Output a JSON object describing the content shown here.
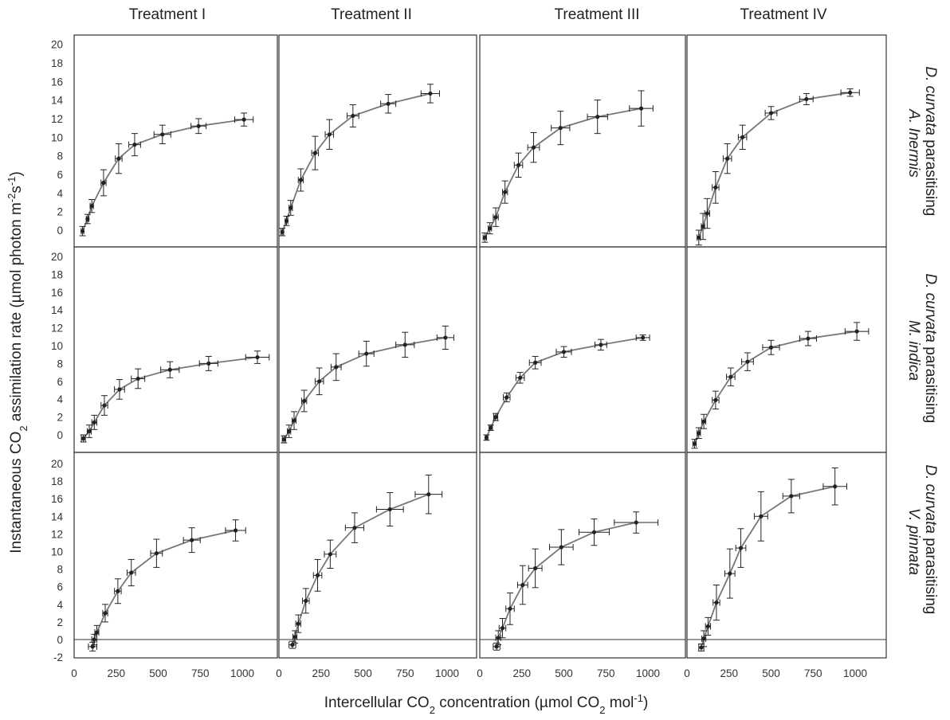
{
  "chart_data": {
    "type": "line",
    "layout": "4x3 small multiples with error bars",
    "x_axis_label": "Intercellular CO2 concentration (µmol CO2 mol-1)",
    "y_axis_label": "Instantaneous CO2 assimilation rate (µmol photon m-2s-1)",
    "column_titles": [
      "Treatment I",
      "Treatment II",
      "Treatment III",
      "Treatment IV"
    ],
    "row_labels": [
      {
        "species": "D. curvata",
        "text": "parasitising",
        "host": "A. Inermis"
      },
      {
        "species": "D. curvata",
        "text": "parasitising",
        "host": "M. indica"
      },
      {
        "species": "D. curvata",
        "text": "parasitising",
        "host": "V. pinnata"
      }
    ],
    "x_ticks": [
      0,
      250,
      500,
      750,
      1000
    ],
    "y_ticks_rows_1_2": [
      0,
      2,
      4,
      6,
      8,
      10,
      12,
      14,
      16,
      18,
      20
    ],
    "y_ticks_row_3": [
      -2,
      0,
      2,
      4,
      6,
      8,
      10,
      12,
      14,
      16,
      18,
      20
    ],
    "xlim": [
      0,
      1100
    ],
    "ylim_rows_1_2": [
      -0.8,
      21.5
    ],
    "ylim_row_3": [
      -2.5,
      21.5
    ],
    "charts": [
      {
        "row": 0,
        "col": 0,
        "points": [
          [
            50,
            -0.1,
            0.5,
            8
          ],
          [
            80,
            1.2,
            0.5,
            8
          ],
          [
            105,
            2.6,
            0.7,
            10
          ],
          [
            175,
            5.1,
            1.4,
            15
          ],
          [
            265,
            7.7,
            1.6,
            20
          ],
          [
            360,
            9.2,
            1.2,
            35
          ],
          [
            525,
            10.3,
            1.0,
            50
          ],
          [
            740,
            11.2,
            0.8,
            45
          ],
          [
            1010,
            11.9,
            0.7,
            55
          ]
        ]
      },
      {
        "row": 0,
        "col": 1,
        "points": [
          [
            20,
            -0.2,
            0.4,
            8
          ],
          [
            45,
            1.0,
            0.5,
            8
          ],
          [
            70,
            2.4,
            0.8,
            10
          ],
          [
            130,
            5.4,
            1.2,
            15
          ],
          [
            215,
            8.3,
            1.8,
            20
          ],
          [
            300,
            10.3,
            1.6,
            25
          ],
          [
            440,
            12.3,
            1.2,
            35
          ],
          [
            650,
            13.6,
            1.0,
            45
          ],
          [
            900,
            14.7,
            1.0,
            55
          ]
        ]
      },
      {
        "row": 0,
        "col": 2,
        "points": [
          [
            30,
            -0.8,
            0.5,
            10
          ],
          [
            60,
            0.2,
            0.6,
            10
          ],
          [
            95,
            1.4,
            1.0,
            15
          ],
          [
            150,
            4.1,
            1.2,
            15
          ],
          [
            230,
            7.0,
            1.3,
            25
          ],
          [
            320,
            8.9,
            1.6,
            35
          ],
          [
            480,
            11.0,
            1.8,
            55
          ],
          [
            700,
            12.2,
            1.8,
            60
          ],
          [
            960,
            13.1,
            1.9,
            70
          ]
        ]
      },
      {
        "row": 0,
        "col": 3,
        "points": [
          [
            70,
            -0.8,
            0.8,
            10
          ],
          [
            95,
            0.4,
            1.4,
            10
          ],
          [
            120,
            1.8,
            1.6,
            15
          ],
          [
            170,
            4.6,
            1.7,
            20
          ],
          [
            240,
            7.7,
            1.6,
            25
          ],
          [
            330,
            10.0,
            1.3,
            25
          ],
          [
            500,
            12.6,
            0.7,
            35
          ],
          [
            710,
            14.1,
            0.6,
            40
          ],
          [
            970,
            14.8,
            0.4,
            55
          ]
        ]
      },
      {
        "row": 1,
        "col": 0,
        "points": [
          [
            55,
            -0.4,
            0.4,
            12
          ],
          [
            90,
            0.4,
            0.7,
            12
          ],
          [
            120,
            1.4,
            0.8,
            15
          ],
          [
            180,
            3.3,
            1.1,
            20
          ],
          [
            270,
            5.1,
            1.1,
            30
          ],
          [
            380,
            6.3,
            1.1,
            40
          ],
          [
            570,
            7.3,
            0.9,
            55
          ],
          [
            800,
            8.0,
            0.8,
            55
          ],
          [
            1090,
            8.7,
            0.7,
            70
          ]
        ]
      },
      {
        "row": 1,
        "col": 1,
        "points": [
          [
            30,
            -0.5,
            0.4,
            10
          ],
          [
            60,
            0.4,
            0.7,
            10
          ],
          [
            90,
            1.6,
            1.0,
            12
          ],
          [
            150,
            3.8,
            1.2,
            15
          ],
          [
            240,
            6.0,
            1.5,
            25
          ],
          [
            340,
            7.6,
            1.5,
            30
          ],
          [
            520,
            9.1,
            1.4,
            45
          ],
          [
            750,
            10.1,
            1.4,
            55
          ],
          [
            990,
            10.9,
            1.3,
            50
          ]
        ]
      },
      {
        "row": 1,
        "col": 2,
        "points": [
          [
            40,
            -0.3,
            0.3,
            8
          ],
          [
            65,
            0.8,
            0.3,
            10
          ],
          [
            95,
            2.0,
            0.4,
            12
          ],
          [
            160,
            4.2,
            0.5,
            20
          ],
          [
            240,
            6.4,
            0.6,
            25
          ],
          [
            330,
            8.1,
            0.7,
            35
          ],
          [
            500,
            9.3,
            0.6,
            45
          ],
          [
            720,
            10.1,
            0.6,
            35
          ],
          [
            970,
            10.9,
            0.3,
            40
          ]
        ]
      },
      {
        "row": 1,
        "col": 3,
        "points": [
          [
            45,
            -1.0,
            0.5,
            10
          ],
          [
            70,
            0.2,
            0.6,
            10
          ],
          [
            100,
            1.5,
            0.8,
            12
          ],
          [
            170,
            3.9,
            1.0,
            20
          ],
          [
            260,
            6.5,
            1.0,
            25
          ],
          [
            360,
            8.2,
            1.0,
            35
          ],
          [
            500,
            9.8,
            0.8,
            50
          ],
          [
            720,
            10.8,
            0.8,
            50
          ],
          [
            1010,
            11.6,
            1.0,
            70
          ]
        ]
      },
      {
        "row": 2,
        "col": 0,
        "points": [
          [
            110,
            -0.8,
            0.5,
            25
          ],
          [
            120,
            0.0,
            0.6,
            15
          ],
          [
            135,
            0.8,
            0.8,
            12
          ],
          [
            185,
            3.0,
            1.0,
            15
          ],
          [
            260,
            5.5,
            1.4,
            20
          ],
          [
            340,
            7.6,
            1.5,
            25
          ],
          [
            490,
            9.8,
            1.6,
            35
          ],
          [
            700,
            11.3,
            1.4,
            50
          ],
          [
            960,
            12.4,
            1.2,
            60
          ]
        ]
      },
      {
        "row": 2,
        "col": 1,
        "points": [
          [
            80,
            -0.6,
            0.4,
            20
          ],
          [
            95,
            0.3,
            0.7,
            12
          ],
          [
            115,
            1.8,
            1.0,
            15
          ],
          [
            160,
            4.4,
            1.4,
            20
          ],
          [
            230,
            7.3,
            1.8,
            25
          ],
          [
            305,
            9.7,
            1.6,
            35
          ],
          [
            450,
            12.7,
            1.7,
            55
          ],
          [
            660,
            14.8,
            1.9,
            80
          ],
          [
            890,
            16.5,
            2.2,
            80
          ]
        ]
      },
      {
        "row": 2,
        "col": 2,
        "points": [
          [
            100,
            -0.8,
            0.4,
            20
          ],
          [
            110,
            0.2,
            0.8,
            15
          ],
          [
            135,
            1.3,
            1.1,
            20
          ],
          [
            180,
            3.5,
            1.8,
            25
          ],
          [
            255,
            6.2,
            2.2,
            30
          ],
          [
            330,
            8.1,
            2.2,
            40
          ],
          [
            485,
            10.5,
            2.0,
            70
          ],
          [
            680,
            12.2,
            1.5,
            90
          ],
          [
            930,
            13.3,
            1.2,
            130
          ]
        ]
      },
      {
        "row": 2,
        "col": 3,
        "points": [
          [
            85,
            -0.9,
            0.4,
            15
          ],
          [
            100,
            0.1,
            0.9,
            12
          ],
          [
            125,
            1.5,
            1.0,
            15
          ],
          [
            175,
            4.2,
            2.0,
            20
          ],
          [
            255,
            7.5,
            2.8,
            30
          ],
          [
            320,
            10.4,
            2.2,
            30
          ],
          [
            440,
            14.0,
            2.8,
            40
          ],
          [
            620,
            16.3,
            1.9,
            50
          ],
          [
            880,
            17.4,
            2.1,
            70
          ]
        ]
      }
    ]
  }
}
